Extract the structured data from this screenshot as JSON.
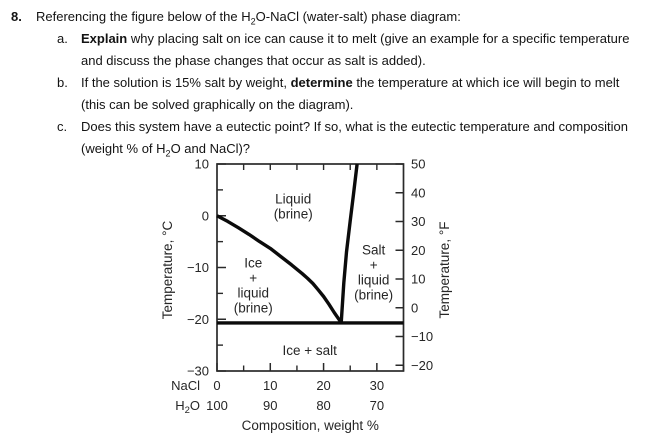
{
  "question": {
    "number": "8.",
    "intro": {
      "part1": "Referencing the figure below of the H",
      "sub": "2",
      "part2": "O-NaCl (water-salt) phase diagram:"
    },
    "items": [
      {
        "label": "a.",
        "bold": "Explain",
        "text": " why placing salt on ice can cause it to melt (give an example for a specific temperature and discuss the phase changes that occur as salt is added)."
      },
      {
        "label": "b.",
        "text1": "If the solution is 15% salt by weight, ",
        "bold": "determine",
        "text2": " the temperature at which ice will begin to melt (this can be solved graphically on the diagram)."
      },
      {
        "label": "c.",
        "text1": "Does this system have a eutectic point? If so, what is the eutectic temperature and composition (weight % of H",
        "sub": "2",
        "text2": "O and NaCl)?"
      }
    ]
  },
  "chart_data": {
    "type": "line",
    "title": "H2O-NaCl (water-salt) phase diagram",
    "xlabel": "Composition, weight %",
    "ylabel_left": "Temperature, °C",
    "ylabel_right": "Temperature, °F",
    "xlim": [
      0,
      35
    ],
    "ylim_c": [
      -30,
      10
    ],
    "ylim_f": [
      -22,
      50
    ],
    "grid": false,
    "x_ticks_major": [
      0,
      10,
      20,
      30
    ],
    "x_ticks_minor": [
      5,
      15,
      25,
      35
    ],
    "x_ticks_top": [
      5,
      10,
      15,
      20,
      25,
      30
    ],
    "y_ticks_c_major": [
      10,
      0,
      -10,
      -20,
      -30
    ],
    "y_tick_labels_c": [
      "10",
      "0",
      "−10",
      "−20",
      "−30"
    ],
    "y_ticks_c_minor": [
      5,
      -5,
      -15,
      -25
    ],
    "y_ticks_f": [
      50,
      40,
      30,
      20,
      10,
      0,
      -10,
      -20
    ],
    "y_tick_labels_f": [
      "50",
      "40",
      "30",
      "20",
      "10",
      "0",
      "−10",
      "−20"
    ],
    "x_rows": [
      {
        "header_main": "NaCl",
        "header_sub": "",
        "header_rest": "",
        "values": [
          "0",
          "10",
          "20",
          "30"
        ]
      },
      {
        "header_main": "H",
        "header_sub": "2",
        "header_rest": "O",
        "values": [
          "100",
          "90",
          "80",
          "70"
        ]
      }
    ],
    "series": [
      {
        "name": "ice-liquidus",
        "points": [
          [
            0,
            0
          ],
          [
            2,
            -1.1
          ],
          [
            4,
            -2.3
          ],
          [
            6,
            -3.6
          ],
          [
            8,
            -5.0
          ],
          [
            10,
            -6.3
          ],
          [
            12,
            -7.9
          ],
          [
            14,
            -9.5
          ],
          [
            16,
            -11.2
          ],
          [
            17,
            -12.1
          ],
          [
            18,
            -13.1
          ],
          [
            19,
            -14.3
          ],
          [
            20,
            -15.6
          ],
          [
            21,
            -17.1
          ],
          [
            22,
            -18.7
          ],
          [
            23,
            -20.2
          ],
          [
            23.3,
            -20.7
          ]
        ]
      },
      {
        "name": "salt-solubility",
        "points": [
          [
            23.3,
            -20.7
          ],
          [
            23.8,
            -13
          ],
          [
            24.3,
            -7
          ],
          [
            25,
            -1
          ],
          [
            25.6,
            4
          ],
          [
            26.3,
            10
          ]
        ]
      },
      {
        "name": "eutectic-isotherm",
        "points": [
          [
            0,
            -20.7
          ],
          [
            35,
            -20.7
          ]
        ]
      }
    ],
    "regions": [
      {
        "name": "region-liquid-brine",
        "lines": [
          "Liquid",
          "(brine)"
        ],
        "x_wt": 14.3,
        "baseline_c": 2.4
      },
      {
        "name": "region-ice-liquid-brine",
        "lines": [
          "Ice",
          "+",
          "liquid",
          "(brine)"
        ],
        "x_wt": 6.8,
        "baseline_c": -10.0
      },
      {
        "name": "region-salt-liquid-brine",
        "lines": [
          "Salt",
          "+",
          "liquid",
          "(brine)"
        ],
        "x_wt": 29.4,
        "baseline_c": -7.5
      },
      {
        "name": "region-ice-salt",
        "lines": [
          "Ice + salt"
        ],
        "x_wt": 17.4,
        "baseline_c": -26.9
      }
    ],
    "colors": {
      "curve": "#0b0b0b",
      "axis": "#2a2a2a",
      "text": "#262626"
    }
  }
}
